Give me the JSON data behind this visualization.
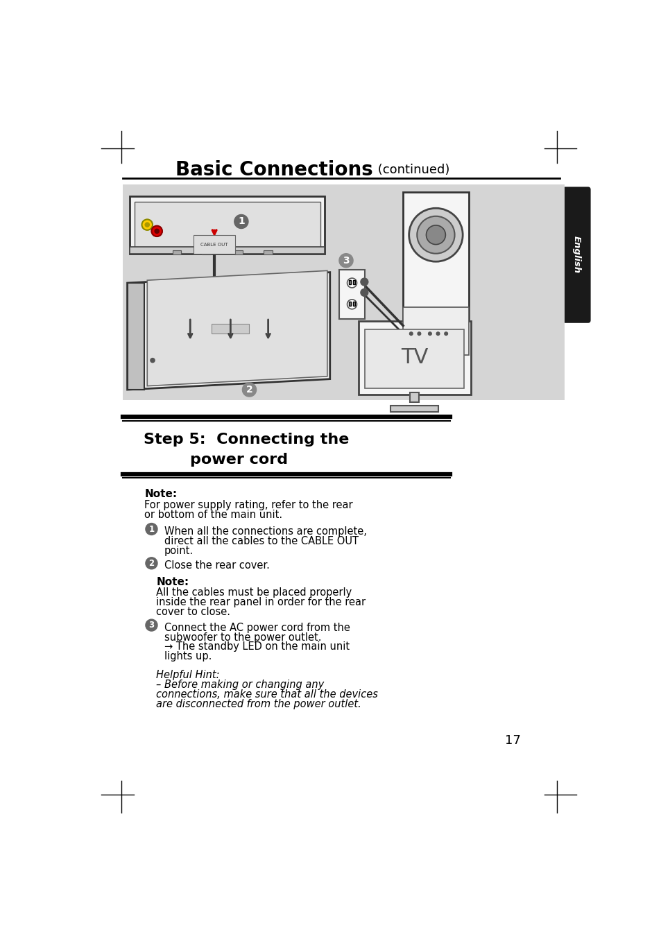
{
  "page_bg": "#ffffff",
  "diagram_bg": "#d8d8d8",
  "title_bold": "Basic Connections",
  "title_normal": " (continued)",
  "step_title_line1": "Step 5:  Connecting the",
  "step_title_line2": "power cord",
  "note1_header": "Note:",
  "note1_text": "For power supply rating, refer to the rear\nor bottom of the main unit.",
  "item1_text": "When all the connections are complete,\ndirect all the cables to the CABLE OUT\npoint.",
  "item2_text": "Close the rear cover.",
  "note2_header": "Note:",
  "note2_text": "All the cables must be placed properly\ninside the rear panel in order for the rear\ncover to close.",
  "item3_line1": "Connect the AC power cord from the",
  "item3_line2": "subwoofer to the power outlet.",
  "item3_line3": "→ The standby LED on the main unit",
  "item3_line4": "lights up.",
  "hint_line1": "Helpful Hint:",
  "hint_line2": "– Before making or changing any",
  "hint_line3": "connections, make sure that all the devices",
  "hint_line4": "are disconnected from the power outlet.",
  "page_number": "17",
  "english_tab_text": "English",
  "tv_label": "TV",
  "cable_out_label": "CABLE OUT"
}
